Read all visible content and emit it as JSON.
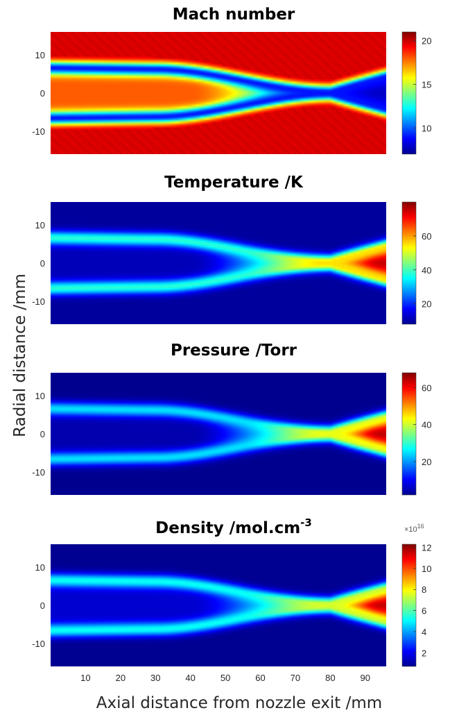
{
  "chart_data": [
    {
      "type": "heatmap",
      "title": "Mach number",
      "colorbar": {
        "min": 7,
        "max": 21,
        "ticks": [
          10,
          15,
          20
        ]
      },
      "field": {
        "core": 18,
        "ambient": 20,
        "shock": 9,
        "post_shock": 9,
        "downstream": 8,
        "background": 20
      }
    },
    {
      "type": "heatmap",
      "title": "Temperature /K",
      "colorbar": {
        "min": 8,
        "max": 80,
        "ticks": [
          20,
          40,
          60
        ]
      },
      "field": {
        "core": 12,
        "ambient": 10,
        "shock": 38,
        "post_shock": 55,
        "downstream": 75,
        "background": 10
      }
    },
    {
      "type": "heatmap",
      "title": "Pressure /Torr",
      "colorbar": {
        "min": 2,
        "max": 68,
        "ticks": [
          20,
          40,
          60
        ]
      },
      "field": {
        "core": 5,
        "ambient": 3,
        "shock": 25,
        "post_shock": 42,
        "downstream": 64,
        "background": 3
      }
    },
    {
      "type": "heatmap",
      "title_main": "Density /mol.cm",
      "title_sup": "-3",
      "colorbar": {
        "min": 0.7,
        "max": 12.3,
        "ticks": [
          2,
          4,
          6,
          8,
          10,
          12
        ],
        "multiplier_base": "×10",
        "multiplier_exp": "16"
      },
      "field": {
        "core": 1.6,
        "ambient": 0.9,
        "shock": 5.2,
        "post_shock": 7.5,
        "downstream": 11.5,
        "background": 0.9
      }
    }
  ],
  "axes": {
    "x_ticks": [
      10,
      20,
      30,
      40,
      50,
      60,
      70,
      80,
      90
    ],
    "xlim": [
      0,
      96
    ],
    "y_ticks": [
      10,
      0,
      -10
    ],
    "ylim": [
      -16,
      16
    ],
    "xlabel": "Axial distance from nozzle exit /mm",
    "ylabel": "Radial distance /mm"
  }
}
